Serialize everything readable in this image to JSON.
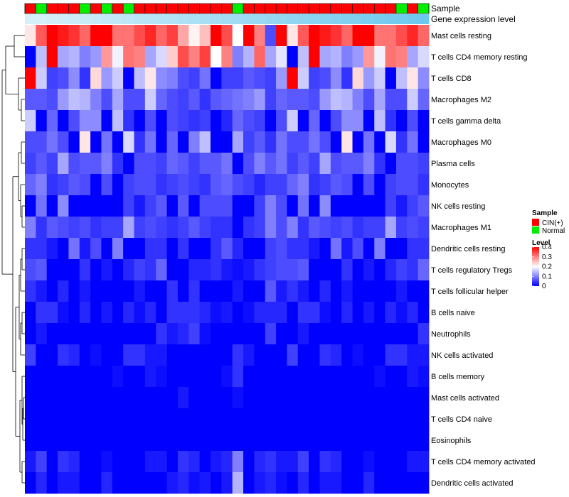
{
  "chart_data": {
    "type": "heatmap",
    "title": "",
    "annotation_rows": [
      {
        "name": "Sample",
        "label": "Sample"
      },
      {
        "name": "Gene expression level",
        "label": "Gene expression level"
      }
    ],
    "samples": [
      "CIN(+)",
      "Normal",
      "CIN(+)",
      "CIN(+)",
      "CIN(+)",
      "Normal",
      "CIN(+)",
      "Normal",
      "CIN(+)",
      "Normal",
      "CIN(+)",
      "CIN(+)",
      "CIN(+)",
      "CIN(+)",
      "CIN(+)",
      "CIN(+)",
      "CIN(+)",
      "CIN(+)",
      "CIN(+)",
      "Normal",
      "CIN(+)",
      "CIN(+)",
      "CIN(+)",
      "CIN(+)",
      "CIN(+)",
      "CIN(+)",
      "CIN(+)",
      "CIN(+)",
      "CIN(+)",
      "CIN(+)",
      "CIN(+)",
      "CIN(+)",
      "CIN(+)",
      "CIN(+)",
      "Normal",
      "CIN(+)",
      "Normal"
    ],
    "gene_expression_level": [
      0.05,
      0.05,
      0.08,
      0.1,
      0.12,
      0.14,
      0.16,
      0.18,
      0.2,
      0.22,
      0.24,
      0.26,
      0.28,
      0.3,
      0.32,
      0.34,
      0.36,
      0.38,
      0.4,
      0.42,
      0.44,
      0.46,
      0.48,
      0.5,
      0.52,
      0.54,
      0.56,
      0.58,
      0.6,
      0.62,
      0.64,
      0.66,
      0.68,
      0.7,
      0.72,
      0.74,
      0.76
    ],
    "rows": [
      {
        "label": "Mast cells resting",
        "values": [
          0.22,
          0.33,
          0.4,
          0.38,
          0.36,
          0.32,
          0.4,
          0.4,
          0.31,
          0.31,
          0.34,
          0.37,
          0.32,
          0.35,
          0.27,
          0.21,
          0.25,
          0.4,
          0.34,
          0.2,
          0.4,
          0.3,
          0.06,
          0.4,
          0.22,
          0.33,
          0.4,
          0.38,
          0.36,
          0.32,
          0.4,
          0.4,
          0.31,
          0.31,
          0.34,
          0.37,
          0.32
        ]
      },
      {
        "label": "T cells CD4 memory resting",
        "values": [
          0.0,
          0.15,
          0.4,
          0.13,
          0.14,
          0.1,
          0.12,
          0.28,
          0.19,
          0.31,
          0.3,
          0.13,
          0.17,
          0.24,
          0.34,
          0.3,
          0.35,
          0.2,
          0.3,
          0.1,
          0.14,
          0.32,
          0.13,
          0.18,
          0.0,
          0.15,
          0.4,
          0.13,
          0.14,
          0.1,
          0.12,
          0.28,
          0.19,
          0.31,
          0.3,
          0.13,
          0.17
        ]
      },
      {
        "label": "T cells CD8",
        "values": [
          0.4,
          0.16,
          0.05,
          0.06,
          0.11,
          0.04,
          0.23,
          0.12,
          0.16,
          0.0,
          0.15,
          0.22,
          0.11,
          0.1,
          0.06,
          0.05,
          0.09,
          0.0,
          0.05,
          0.05,
          0.07,
          0.06,
          0.05,
          0.12,
          0.4,
          0.16,
          0.05,
          0.06,
          0.11,
          0.04,
          0.23,
          0.12,
          0.16,
          0.0,
          0.15,
          0.22,
          0.11
        ]
      },
      {
        "label": "Macrophages M2",
        "values": [
          0.07,
          0.07,
          0.06,
          0.12,
          0.15,
          0.14,
          0.1,
          0.06,
          0.13,
          0.06,
          0.06,
          0.16,
          0.08,
          0.06,
          0.05,
          0.07,
          0.04,
          0.07,
          0.08,
          0.09,
          0.1,
          0.12,
          0.05,
          0.08,
          0.07,
          0.07,
          0.06,
          0.12,
          0.15,
          0.14,
          0.1,
          0.06,
          0.13,
          0.06,
          0.06,
          0.16,
          0.08
        ]
      },
      {
        "label": "T cells gamma delta",
        "values": [
          0.16,
          0.0,
          0.08,
          0.0,
          0.06,
          0.11,
          0.11,
          0.0,
          0.15,
          0.04,
          0.0,
          0.06,
          0.0,
          0.06,
          0.05,
          0.04,
          0.05,
          0.0,
          0.03,
          0.08,
          0.06,
          0.05,
          0.0,
          0.06,
          0.16,
          0.0,
          0.08,
          0.0,
          0.06,
          0.11,
          0.11,
          0.0,
          0.15,
          0.04,
          0.0,
          0.06,
          0.0
        ]
      },
      {
        "label": "Macrophages M0",
        "values": [
          0.06,
          0.06,
          0.09,
          0.06,
          0.0,
          0.22,
          0.0,
          0.09,
          0.0,
          0.17,
          0.04,
          0.09,
          0.0,
          0.08,
          0.0,
          0.1,
          0.15,
          0.0,
          0.0,
          0.13,
          0.05,
          0.07,
          0.04,
          0.09,
          0.06,
          0.06,
          0.09,
          0.06,
          0.0,
          0.22,
          0.0,
          0.09,
          0.0,
          0.17,
          0.04,
          0.09,
          0.0
        ]
      },
      {
        "label": "Plasma cells",
        "values": [
          0.05,
          0.07,
          0.05,
          0.13,
          0.06,
          0.07,
          0.07,
          0.1,
          0.04,
          0.0,
          0.06,
          0.06,
          0.05,
          0.08,
          0.07,
          0.05,
          0.07,
          0.07,
          0.09,
          0.0,
          0.06,
          0.1,
          0.07,
          0.09,
          0.05,
          0.07,
          0.05,
          0.13,
          0.06,
          0.07,
          0.07,
          0.1,
          0.04,
          0.0,
          0.06,
          0.06,
          0.05
        ]
      },
      {
        "label": "Monocytes",
        "values": [
          0.08,
          0.1,
          0.04,
          0.05,
          0.07,
          0.06,
          0.0,
          0.06,
          0.0,
          0.05,
          0.06,
          0.06,
          0.04,
          0.05,
          0.06,
          0.05,
          0.04,
          0.07,
          0.08,
          0.06,
          0.05,
          0.03,
          0.05,
          0.05,
          0.08,
          0.1,
          0.04,
          0.05,
          0.07,
          0.06,
          0.0,
          0.06,
          0.0,
          0.05,
          0.06,
          0.06,
          0.04
        ]
      },
      {
        "label": "NK cells resting",
        "values": [
          0.0,
          0.09,
          0.0,
          0.11,
          0.0,
          0.0,
          0.0,
          0.0,
          0.0,
          0.05,
          0.02,
          0.05,
          0.07,
          0.0,
          0.07,
          0.0,
          0.06,
          0.06,
          0.06,
          0.0,
          0.0,
          0.05,
          0.1,
          0.06,
          0.0,
          0.09,
          0.0,
          0.11,
          0.0,
          0.0,
          0.0,
          0.0,
          0.0,
          0.05,
          0.02,
          0.05,
          0.07
        ]
      },
      {
        "label": "Macrophages M1",
        "values": [
          0.1,
          0.04,
          0.07,
          0.06,
          0.05,
          0.06,
          0.04,
          0.05,
          0.05,
          0.13,
          0.05,
          0.06,
          0.05,
          0.04,
          0.05,
          0.07,
          0.05,
          0.04,
          0.04,
          0.0,
          0.04,
          0.05,
          0.1,
          0.06,
          0.1,
          0.04,
          0.07,
          0.06,
          0.05,
          0.06,
          0.04,
          0.05,
          0.05,
          0.13,
          0.05,
          0.06,
          0.05
        ]
      },
      {
        "label": "Dendritic cells resting",
        "values": [
          0.04,
          0.04,
          0.02,
          0.0,
          0.09,
          0.02,
          0.06,
          0.0,
          0.1,
          0.0,
          0.0,
          0.04,
          0.04,
          0.0,
          0.04,
          0.0,
          0.0,
          0.04,
          0.07,
          0.03,
          0.0,
          0.0,
          0.05,
          0.06,
          0.04,
          0.04,
          0.02,
          0.0,
          0.09,
          0.02,
          0.06,
          0.0,
          0.1,
          0.0,
          0.0,
          0.04,
          0.04
        ]
      },
      {
        "label": "T cells regulatory  Tregs",
        "values": [
          0.06,
          0.07,
          0.0,
          0.0,
          0.0,
          0.04,
          0.0,
          0.02,
          0.0,
          0.03,
          0.05,
          0.04,
          0.08,
          0.0,
          0.0,
          0.03,
          0.03,
          0.04,
          0.02,
          0.01,
          0.02,
          0.04,
          0.05,
          0.06,
          0.06,
          0.07,
          0.0,
          0.0,
          0.0,
          0.04,
          0.0,
          0.02,
          0.0,
          0.03,
          0.05,
          0.04,
          0.08
        ]
      },
      {
        "label": "T cells follicular helper",
        "values": [
          0.04,
          0.02,
          0.0,
          0.03,
          0.0,
          0.02,
          0.0,
          0.0,
          0.0,
          0.0,
          0.02,
          0.0,
          0.0,
          0.04,
          0.0,
          0.04,
          0.0,
          0.0,
          0.0,
          0.02,
          0.0,
          0.0,
          0.07,
          0.02,
          0.04,
          0.02,
          0.0,
          0.03,
          0.0,
          0.02,
          0.0,
          0.0,
          0.0,
          0.0,
          0.02,
          0.0,
          0.0
        ]
      },
      {
        "label": "B cells naive",
        "values": [
          0.0,
          0.04,
          0.04,
          0.01,
          0.0,
          0.03,
          0.0,
          0.02,
          0.0,
          0.03,
          0.01,
          0.03,
          0.0,
          0.04,
          0.04,
          0.04,
          0.03,
          0.01,
          0.02,
          0.0,
          0.01,
          0.03,
          0.03,
          0.03,
          0.0,
          0.04,
          0.04,
          0.01,
          0.0,
          0.03,
          0.0,
          0.02,
          0.0,
          0.03,
          0.01,
          0.03,
          0.0
        ]
      },
      {
        "label": "Neutrophils",
        "values": [
          0.0,
          0.02,
          0.0,
          0.0,
          0.0,
          0.0,
          0.0,
          0.0,
          0.0,
          0.0,
          0.0,
          0.0,
          0.04,
          0.02,
          0.03,
          0.05,
          0.01,
          0.0,
          0.0,
          0.0,
          0.0,
          0.0,
          0.05,
          0.0,
          0.0,
          0.02,
          0.0,
          0.0,
          0.0,
          0.0,
          0.0,
          0.0,
          0.0,
          0.0,
          0.0,
          0.0,
          0.04
        ]
      },
      {
        "label": "NK cells activated",
        "values": [
          0.05,
          0.0,
          0.0,
          0.04,
          0.03,
          0.0,
          0.01,
          0.0,
          0.0,
          0.04,
          0.04,
          0.02,
          0.02,
          0.0,
          0.0,
          0.0,
          0.0,
          0.0,
          0.0,
          0.04,
          0.02,
          0.0,
          0.0,
          0.0,
          0.05,
          0.0,
          0.0,
          0.04,
          0.03,
          0.0,
          0.01,
          0.0,
          0.0,
          0.04,
          0.04,
          0.02,
          0.02
        ]
      },
      {
        "label": "B cells memory",
        "values": [
          0.0,
          0.0,
          0.0,
          0.0,
          0.0,
          0.0,
          0.0,
          0.0,
          0.01,
          0.0,
          0.0,
          0.02,
          0.01,
          0.0,
          0.0,
          0.0,
          0.0,
          0.0,
          0.01,
          0.04,
          0.0,
          0.0,
          0.0,
          0.0,
          0.0,
          0.0,
          0.0,
          0.0,
          0.0,
          0.0,
          0.0,
          0.0,
          0.01,
          0.0,
          0.0,
          0.02,
          0.01
        ]
      },
      {
        "label": "Mast cells activated",
        "values": [
          0.0,
          0.0,
          0.0,
          0.0,
          0.0,
          0.0,
          0.0,
          0.0,
          0.0,
          0.0,
          0.0,
          0.0,
          0.0,
          0.0,
          0.02,
          0.0,
          0.0,
          0.0,
          0.0,
          0.01,
          0.0,
          0.0,
          0.0,
          0.0,
          0.0,
          0.0,
          0.0,
          0.0,
          0.0,
          0.0,
          0.0,
          0.0,
          0.0,
          0.0,
          0.0,
          0.0,
          0.0
        ]
      },
      {
        "label": "T cells CD4 naive",
        "values": [
          0.0,
          0.0,
          0.0,
          0.0,
          0.0,
          0.0,
          0.0,
          0.0,
          0.0,
          0.0,
          0.0,
          0.0,
          0.0,
          0.0,
          0.0,
          0.0,
          0.0,
          0.0,
          0.0,
          0.0,
          0.0,
          0.0,
          0.0,
          0.0,
          0.0,
          0.0,
          0.0,
          0.0,
          0.0,
          0.0,
          0.0,
          0.0,
          0.0,
          0.0,
          0.0,
          0.0,
          0.0
        ]
      },
      {
        "label": "Eosinophils",
        "values": [
          0.0,
          0.0,
          0.0,
          0.0,
          0.0,
          0.0,
          0.0,
          0.0,
          0.0,
          0.0,
          0.0,
          0.0,
          0.0,
          0.0,
          0.0,
          0.0,
          0.0,
          0.0,
          0.0,
          0.0,
          0.0,
          0.0,
          0.0,
          0.0,
          0.0,
          0.0,
          0.0,
          0.0,
          0.0,
          0.0,
          0.0,
          0.0,
          0.0,
          0.0,
          0.0,
          0.0,
          0.0
        ]
      },
      {
        "label": "T cells CD4 memory activated",
        "values": [
          0.02,
          0.05,
          0.0,
          0.04,
          0.03,
          0.0,
          0.0,
          0.01,
          0.0,
          0.0,
          0.0,
          0.02,
          0.02,
          0.0,
          0.04,
          0.03,
          0.0,
          0.02,
          0.03,
          0.1,
          0.0,
          0.03,
          0.04,
          0.02,
          0.02,
          0.05,
          0.0,
          0.04,
          0.03,
          0.0,
          0.0,
          0.01,
          0.0,
          0.0,
          0.0,
          0.02,
          0.02
        ]
      },
      {
        "label": "Dendritic cells activated",
        "values": [
          0.0,
          0.03,
          0.0,
          0.02,
          0.02,
          0.0,
          0.0,
          0.03,
          0.0,
          0.0,
          0.0,
          0.0,
          0.0,
          0.02,
          0.03,
          0.01,
          0.02,
          0.0,
          0.02,
          0.14,
          0.0,
          0.02,
          0.03,
          0.01,
          0.0,
          0.03,
          0.0,
          0.02,
          0.02,
          0.0,
          0.0,
          0.03,
          0.0,
          0.0,
          0.0,
          0.0,
          0.0
        ]
      }
    ],
    "legend": {
      "sample_title": "Sample",
      "sample_entries": [
        {
          "label": "CIN(+)",
          "color": "#FF0000"
        },
        {
          "label": "Normal",
          "color": "#00EE00"
        }
      ],
      "level_title": "Level",
      "level_ticks": [
        "0.4",
        "0.3",
        "0.2",
        "0.1",
        "0"
      ],
      "level_range": [
        0,
        0.4
      ]
    },
    "colors": {
      "low": "#0000FF",
      "mid": "#FFFFFF",
      "high": "#FF0000",
      "gene_expr_start": "#D6F0FA",
      "gene_expr_end": "#6CC8EE",
      "dendrogram": "#000000"
    }
  }
}
